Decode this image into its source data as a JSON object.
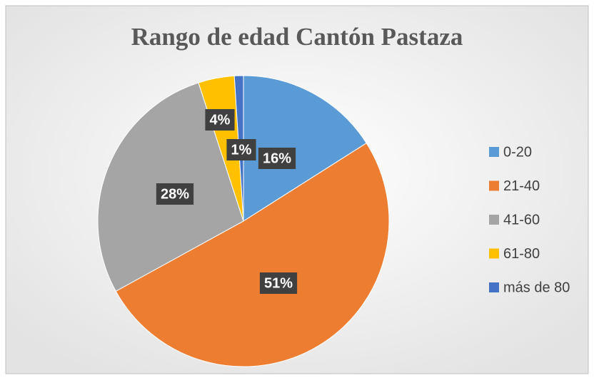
{
  "chart_data": {
    "type": "pie",
    "title": "Rango de edad Cantón Pastaza",
    "categories": [
      "0-20",
      "21-40",
      "41-60",
      "61-80",
      "más de 80"
    ],
    "values": [
      16,
      51,
      28,
      4,
      1
    ],
    "value_labels": [
      "16%",
      "51%",
      "28%",
      "4%",
      "1%"
    ],
    "colors": [
      "#5b9bd5",
      "#ed7d31",
      "#a5a5a5",
      "#ffc000",
      "#4472c4"
    ],
    "legend": "right"
  }
}
